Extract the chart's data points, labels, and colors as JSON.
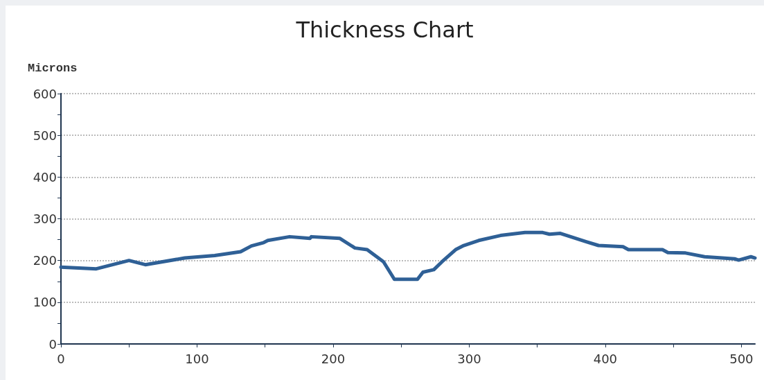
{
  "chart_data": {
    "type": "line",
    "title": "Thickness Chart",
    "ylabel": "Microns",
    "x": [
      0,
      26,
      50,
      62,
      91,
      113,
      132,
      140,
      149,
      152,
      168,
      183,
      184,
      205,
      216,
      225,
      237,
      245,
      262,
      266,
      274,
      280,
      290,
      296,
      307,
      323,
      341,
      354,
      359,
      367,
      386,
      395,
      413,
      417,
      442,
      446,
      459,
      473,
      495,
      498,
      507,
      510
    ],
    "series": [
      {
        "color": "#2f6096",
        "values": [
          184,
          180,
          200,
          190,
          206,
          212,
          221,
          235,
          243,
          248,
          257,
          253,
          257,
          253,
          230,
          226,
          197,
          155,
          155,
          172,
          178,
          197,
          226,
          236,
          248,
          260,
          267,
          267,
          263,
          265,
          245,
          236,
          233,
          226,
          226,
          219,
          218,
          209,
          204,
          201,
          209,
          206
        ]
      }
    ],
    "xlim": [
      0,
      510
    ],
    "xticks": [
      0,
      {
        "value": 50,
        "label": null
      },
      100,
      {
        "value": 150,
        "label": null
      },
      200,
      {
        "value": 250,
        "label": null
      },
      300,
      {
        "value": 350,
        "label": null
      },
      400,
      {
        "value": 450,
        "label": null
      },
      500
    ],
    "ylim": [
      0,
      600
    ],
    "yticks": [
      0,
      {
        "value": 50,
        "label": null
      },
      100,
      {
        "value": 150,
        "label": null
      },
      200,
      {
        "value": 250,
        "label": null
      },
      300,
      {
        "value": 350,
        "label": null
      },
      400,
      {
        "value": 450,
        "label": null
      },
      500,
      {
        "value": 550,
        "label": null
      },
      600
    ],
    "grid": "y",
    "marker": "none",
    "line_style": "solid"
  }
}
